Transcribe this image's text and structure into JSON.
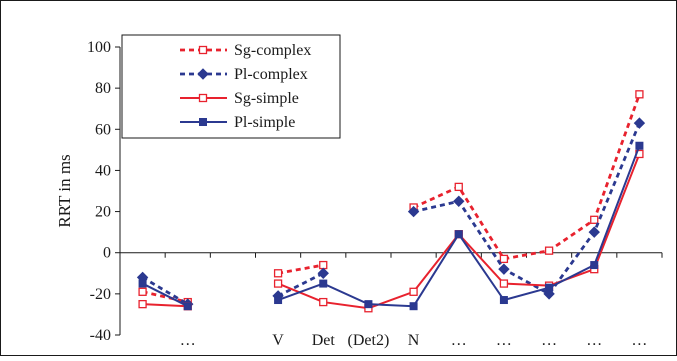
{
  "chart_data": {
    "type": "line",
    "ylabel": "RRT in ms",
    "xlabel": "",
    "title": "",
    "ylim": [
      -40,
      100
    ],
    "yticks": [
      -40,
      -20,
      0,
      20,
      40,
      60,
      80,
      100
    ],
    "categories": [
      "",
      "…",
      "",
      "V",
      "Det",
      "(Det2)",
      "N",
      "…",
      "…",
      "…",
      "…",
      "…"
    ],
    "grid": false,
    "legend_position": "top-left",
    "series": [
      {
        "name": "Sg-complex",
        "color": "#e8222e",
        "dash": "dotted",
        "marker": "open-square",
        "values": [
          -19,
          -24,
          null,
          -10,
          -6,
          null,
          22,
          32,
          -3,
          1,
          16,
          77
        ]
      },
      {
        "name": "Pl-complex",
        "color": "#2b3990",
        "dash": "dotted",
        "marker": "filled-diamond",
        "values": [
          -12,
          -25,
          null,
          -21,
          -10,
          null,
          20,
          25,
          -8,
          -20,
          10,
          63
        ]
      },
      {
        "name": "Sg-simple",
        "color": "#e8222e",
        "dash": "solid",
        "marker": "open-square",
        "values": [
          -25,
          -26,
          null,
          -15,
          -24,
          -27,
          -19,
          9,
          -15,
          -16,
          -8,
          48
        ]
      },
      {
        "name": "Pl-simple",
        "color": "#2b3990",
        "dash": "solid",
        "marker": "filled-square",
        "values": [
          -15,
          -26,
          null,
          -23,
          -15,
          -25,
          -26,
          9,
          -23,
          -17,
          -6,
          52
        ]
      }
    ]
  }
}
